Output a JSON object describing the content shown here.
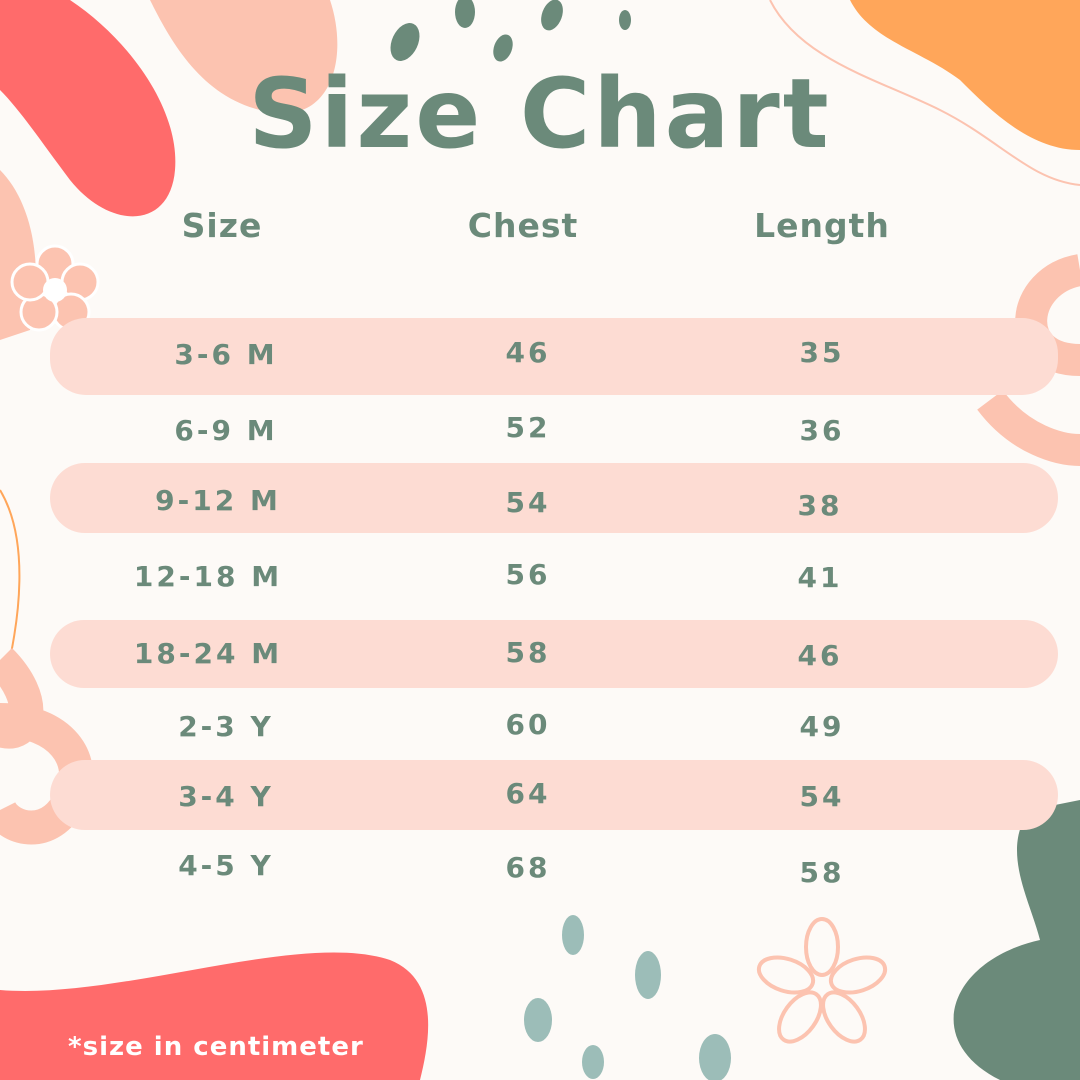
{
  "title": "Size Chart",
  "headers": [
    "Size",
    "Chest",
    "Length"
  ],
  "rows": [
    {
      "size": "3-6 M",
      "chest": "46",
      "length": "35"
    },
    {
      "size": "6-9 M",
      "chest": "52",
      "length": "36"
    },
    {
      "size": "9-12 M",
      "chest": "54",
      "length": "38"
    },
    {
      "size": "12-18 M",
      "chest": "56",
      "length": "41"
    },
    {
      "size": "18-24 M",
      "chest": "58",
      "length": "46"
    },
    {
      "size": "2-3 Y",
      "chest": "60",
      "length": "49"
    },
    {
      "size": "3-4 Y",
      "chest": "64",
      "length": "54"
    },
    {
      "size": "4-5 Y",
      "chest": "68",
      "length": "58"
    }
  ],
  "note": "*size in centimeter",
  "colors": {
    "green": "#6b8a7a",
    "red": "#ff6b6b",
    "salmon": "#fcc3b0",
    "orange": "#ffa65a",
    "band": "#fddcd3",
    "background": "#fdfaf7"
  }
}
